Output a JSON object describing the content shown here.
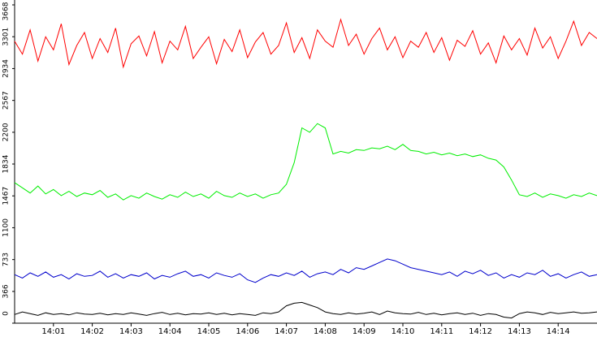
{
  "chart_data": {
    "type": "line",
    "x": [
      0,
      0.2,
      0.4,
      0.6,
      0.8,
      1,
      1.2,
      1.4,
      1.6,
      1.8,
      2,
      2.2,
      2.4,
      2.6,
      2.8,
      3,
      3.2,
      3.4,
      3.6,
      3.8,
      4,
      4.2,
      4.4,
      4.6,
      4.8,
      5,
      5.2,
      5.4,
      5.6,
      5.8,
      6,
      6.2,
      6.4,
      6.6,
      6.8,
      7,
      7.2,
      7.4,
      7.6,
      7.8,
      8,
      8.2,
      8.4,
      8.6,
      8.8,
      9,
      9.2,
      9.4,
      9.6,
      9.8,
      10,
      10.2,
      10.4,
      10.6,
      10.8,
      11,
      11.2,
      11.4,
      11.6,
      11.8,
      12,
      12.2,
      12.4,
      12.6,
      12.8,
      13,
      13.2,
      13.4,
      13.6,
      13.8,
      14,
      14.2,
      14.4,
      14.6,
      14.8,
      15
    ],
    "series": [
      {
        "color": "#ff0000",
        "values": [
          3250,
          3100,
          3380,
          3020,
          3300,
          3150,
          3450,
          2980,
          3200,
          3350,
          3050,
          3280,
          3120,
          3400,
          2950,
          3220,
          3310,
          3080,
          3360,
          3000,
          3250,
          3150,
          3420,
          3050,
          3180,
          3300,
          2990,
          3270,
          3130,
          3380,
          3060,
          3240,
          3350,
          3100,
          3200,
          3460,
          3120,
          3290,
          3050,
          3380,
          3250,
          3180,
          3500,
          3200,
          3330,
          3100,
          3280,
          3400,
          3150,
          3300,
          3060,
          3250,
          3180,
          3350,
          3120,
          3290,
          3030,
          3260,
          3190,
          3370,
          3100,
          3230,
          3000,
          3310,
          3150,
          3280,
          3090,
          3400,
          3170,
          3300,
          3050,
          3250,
          3480,
          3200,
          3350,
          3280
        ]
      },
      {
        "color": "#00ee00",
        "values": [
          1620,
          1560,
          1500,
          1580,
          1490,
          1540,
          1470,
          1520,
          1460,
          1500,
          1480,
          1530,
          1450,
          1490,
          1420,
          1470,
          1440,
          1500,
          1460,
          1430,
          1480,
          1450,
          1510,
          1460,
          1490,
          1440,
          1520,
          1470,
          1450,
          1500,
          1460,
          1490,
          1440,
          1480,
          1500,
          1600,
          1850,
          2250,
          2200,
          2300,
          2250,
          1950,
          1980,
          1960,
          2000,
          1990,
          2020,
          2010,
          2040,
          2000,
          2060,
          1990,
          1980,
          1950,
          1970,
          1940,
          1960,
          1930,
          1950,
          1920,
          1940,
          1900,
          1880,
          1800,
          1650,
          1480,
          1460,
          1500,
          1450,
          1490,
          1470,
          1440,
          1480,
          1460,
          1500,
          1470
        ]
      },
      {
        "color": "#0000cc",
        "values": [
          560,
          520,
          580,
          540,
          590,
          530,
          560,
          510,
          570,
          540,
          550,
          600,
          530,
          570,
          520,
          560,
          540,
          580,
          510,
          550,
          530,
          570,
          600,
          540,
          560,
          520,
          580,
          550,
          530,
          570,
          500,
          470,
          520,
          560,
          540,
          580,
          550,
          600,
          530,
          570,
          590,
          560,
          620,
          580,
          640,
          620,
          660,
          700,
          740,
          720,
          680,
          640,
          620,
          600,
          580,
          560,
          590,
          540,
          600,
          570,
          610,
          550,
          580,
          520,
          560,
          530,
          580,
          560,
          610,
          540,
          570,
          520,
          560,
          590,
          540,
          560
        ]
      },
      {
        "color": "#000000",
        "values": [
          100,
          130,
          110,
          90,
          120,
          100,
          110,
          95,
          120,
          105,
          100,
          115,
          95,
          110,
          100,
          120,
          105,
          90,
          110,
          125,
          100,
          115,
          95,
          110,
          105,
          120,
          100,
          115,
          95,
          110,
          100,
          90,
          120,
          110,
          130,
          200,
          230,
          240,
          210,
          180,
          130,
          110,
          100,
          120,
          105,
          115,
          130,
          100,
          140,
          120,
          110,
          105,
          125,
          100,
          115,
          95,
          110,
          120,
          100,
          115,
          90,
          110,
          100,
          70,
          60,
          110,
          130,
          120,
          100,
          125,
          110,
          120,
          130,
          115,
          120,
          130
        ]
      }
    ],
    "xlim": [
      0,
      15
    ],
    "xticks": [
      {
        "value": 1,
        "label": "14:01"
      },
      {
        "value": 2,
        "label": "14:02"
      },
      {
        "value": 3,
        "label": "14:03"
      },
      {
        "value": 4,
        "label": "14:04"
      },
      {
        "value": 5,
        "label": "14:05"
      },
      {
        "value": 6,
        "label": "14:06"
      },
      {
        "value": 7,
        "label": "14:07"
      },
      {
        "value": 8,
        "label": "14:08"
      },
      {
        "value": 9,
        "label": "14:09"
      },
      {
        "value": 10,
        "label": "14:10"
      },
      {
        "value": 11,
        "label": "14:11"
      },
      {
        "value": 12,
        "label": "14:12"
      },
      {
        "value": 13,
        "label": "14:13"
      },
      {
        "value": 14,
        "label": "14:14"
      }
    ],
    "ylim": [
      0,
      3668
    ],
    "yticks": [
      0,
      366,
      733,
      1100,
      1467,
      1834,
      2200,
      2567,
      2934,
      3301,
      3668
    ]
  }
}
